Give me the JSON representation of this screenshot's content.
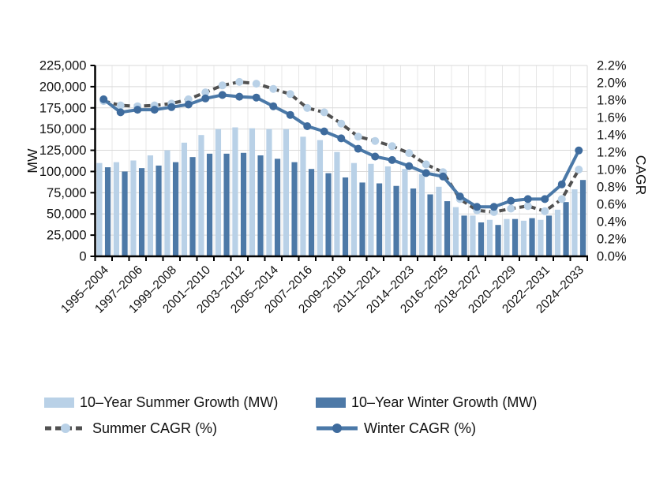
{
  "page": {
    "background_color": "#FFFFFF"
  },
  "chart_data": {
    "type": "combo-bar-line",
    "n_categories": 29,
    "x_label_rotation_deg": -45,
    "x_labels_shown_every_other_category_starting_at_first": true,
    "x_tick_labels": [
      "1995–2004",
      "1997–2006",
      "1999–2008",
      "2001–2010",
      "2003–2012",
      "2005–2014",
      "2007–2016",
      "2009–2018",
      "2011–2021",
      "2014–2023",
      "2016–2025",
      "2018–2027",
      "2020–2029",
      "2022–2031",
      "2024–2033"
    ],
    "left_axis": {
      "title": "MW",
      "min": 0,
      "max": 225000,
      "tick_step": 25000,
      "tick_labels_top_to_bottom": [
        "225,000",
        "200,000",
        "175,000",
        "150,000",
        "125,000",
        "100,000",
        "75,000",
        "50,000",
        "25,000",
        "0"
      ]
    },
    "right_axis": {
      "title": "CAGR",
      "min": 0.0,
      "max": 2.2,
      "tick_step": 0.2,
      "tick_labels_top_to_bottom": [
        "2.2%",
        "2.0%",
        "1.8%",
        "1.6%",
        "1.4%",
        "1.2%",
        "1.0%",
        "0.8%",
        "0.6%",
        "0.4%",
        "0.2%",
        "0.0%"
      ]
    },
    "gridlines": {
      "horizontal_every_mw": 25000,
      "vertical_at_category_boundaries": true,
      "color": "#D9D9D9",
      "vertical_color": "#E7E7E7"
    },
    "axis_color": "#000000",
    "text_color": "#111111",
    "legend_position": "bottom-two-columns",
    "series": [
      {
        "name": "10–Year Summer Growth (MW)",
        "type": "bar",
        "axis": "left",
        "color": "#B9D1E7",
        "values_mw": [
          110000,
          111000,
          113000,
          119000,
          125000,
          134000,
          143000,
          150000,
          152000,
          151000,
          150000,
          150000,
          141000,
          137000,
          123000,
          110000,
          109000,
          106000,
          103000,
          97000,
          82000,
          58000,
          48000,
          43000,
          44000,
          42000,
          43000,
          55000,
          79000
        ]
      },
      {
        "name": "10–Year Winter Growth (MW)",
        "type": "bar",
        "axis": "left",
        "color": "#4D79A7",
        "values_mw": [
          105000,
          100000,
          104000,
          107000,
          111000,
          117000,
          121000,
          121000,
          122000,
          119000,
          115000,
          111000,
          103000,
          98000,
          93000,
          87000,
          86000,
          83000,
          80000,
          73000,
          65000,
          48000,
          40000,
          37000,
          44000,
          45000,
          48000,
          64000,
          90000
        ]
      },
      {
        "name": "Summer CAGR (%)",
        "type": "line",
        "axis": "right",
        "color": "#515151",
        "marker_color": "#B9D1E7",
        "dashed": true,
        "values_pct": [
          1.79,
          1.74,
          1.73,
          1.74,
          1.76,
          1.81,
          1.89,
          1.97,
          2.01,
          1.99,
          1.93,
          1.87,
          1.71,
          1.66,
          1.53,
          1.38,
          1.33,
          1.27,
          1.19,
          1.06,
          0.97,
          0.66,
          0.53,
          0.51,
          0.55,
          0.58,
          0.52,
          0.66,
          1.0
        ]
      },
      {
        "name": "Winter CAGR (%)",
        "type": "line",
        "axis": "right",
        "color": "#4B79A8",
        "marker_color": "#3E6B9D",
        "dashed": false,
        "values_pct": [
          1.81,
          1.66,
          1.69,
          1.69,
          1.72,
          1.75,
          1.82,
          1.86,
          1.84,
          1.83,
          1.73,
          1.63,
          1.5,
          1.44,
          1.36,
          1.24,
          1.15,
          1.11,
          1.04,
          0.96,
          0.92,
          0.69,
          0.57,
          0.57,
          0.64,
          0.66,
          0.66,
          0.83,
          1.22
        ]
      }
    ]
  }
}
